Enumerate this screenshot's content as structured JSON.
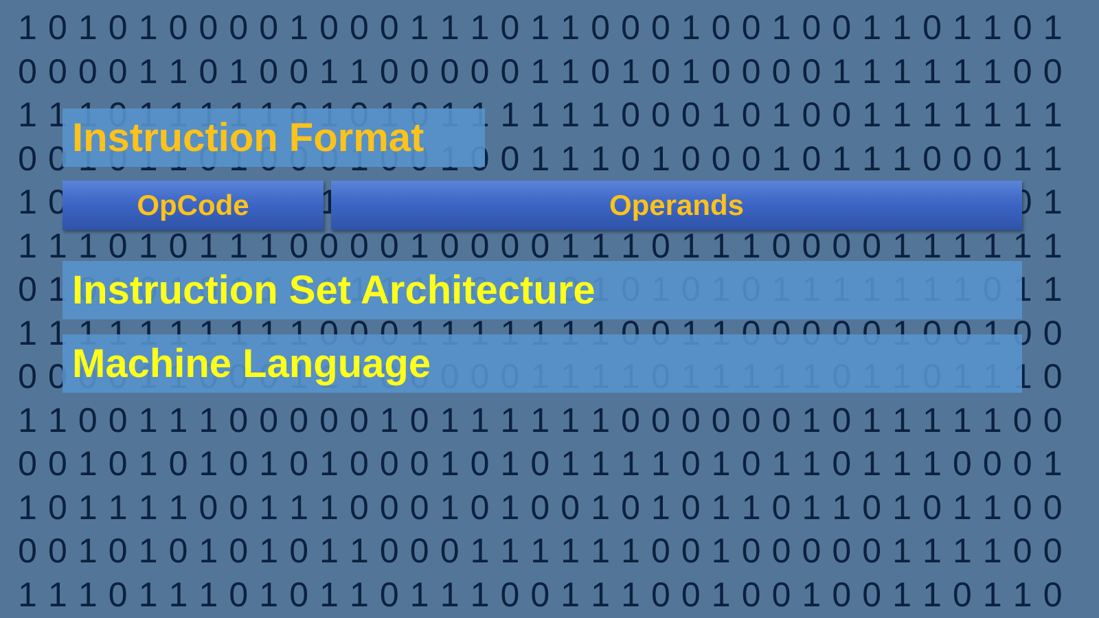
{
  "instruction_format": {
    "title": "Instruction Format",
    "fields": [
      "OpCode",
      "Operands"
    ]
  },
  "instruction_set_architecture": {
    "title": "Instruction Set Architecture"
  },
  "machine_language": {
    "title": "Machine Language"
  },
  "colors": {
    "background": "#537598",
    "binary_digits": "#0b213f",
    "panel": "#5694cd",
    "field_box": "#3d66c6",
    "orange_text": "#ffc21a",
    "yellow_text": "#ffff1a"
  },
  "binary_background": [
    "10101000010001110110001001001101101",
    "00001101001100000110101000011111100",
    "11101111101010111111000101001111111",
    "00101101000100100111010001011100011",
    "10011000101110000101111100010001101",
    "11101011100001000011101110000111111",
    "01010101101111101101010101111111011",
    "11111111110001111111001100000100100",
    "00001100011100000111101111101101110",
    "11001110000010111111000000101111100",
    "00101010101000101011110101101110001",
    "10111100111000101001010110110101100",
    "00101010101100011111100100000111100",
    "11101110101101110011100100100110110"
  ]
}
